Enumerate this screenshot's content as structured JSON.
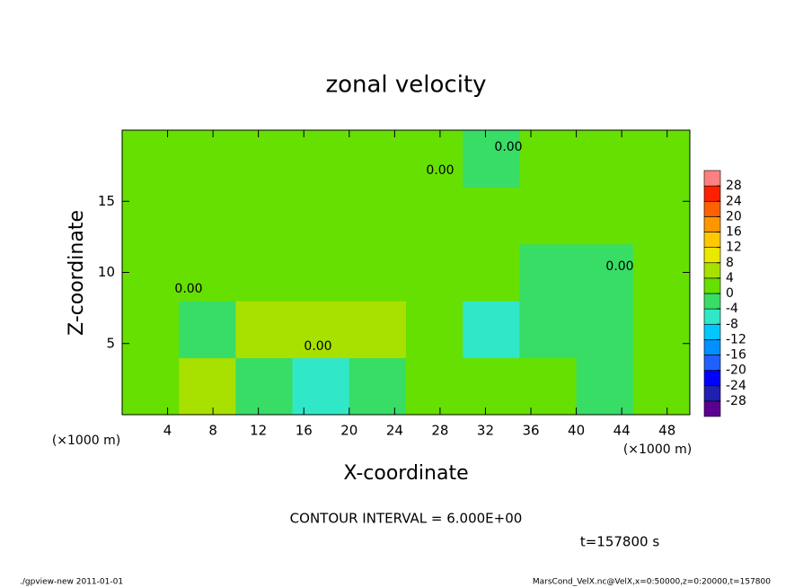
{
  "chart_data": {
    "type": "contour",
    "title": "zonal velocity",
    "x_label": "X-coordinate",
    "y_label": "Z-coordinate",
    "x_units": "(×1000 m)",
    "y_units": "(×1000 m)",
    "xlim": [
      0,
      50
    ],
    "ylim": [
      0,
      20
    ],
    "xticks": [
      4,
      8,
      12,
      16,
      20,
      24,
      28,
      32,
      36,
      40,
      44,
      48
    ],
    "yticks": [
      5,
      10,
      15
    ],
    "x_bins": [
      0,
      5,
      10,
      15,
      20,
      25,
      30,
      35,
      40,
      45,
      50
    ],
    "z_bins": [
      0,
      4,
      8,
      12,
      16,
      20
    ],
    "z": [
      [
        2,
        6,
        -4,
        -5,
        -2,
        2,
        1,
        2,
        -3,
        2
      ],
      [
        2,
        -1,
        4,
        7,
        5,
        2,
        -5,
        -2,
        -4,
        1
      ],
      [
        1,
        2,
        2,
        2,
        1,
        2,
        0,
        -1,
        -2,
        2
      ],
      [
        2,
        2,
        2,
        2,
        1,
        1,
        1,
        2,
        1,
        2
      ],
      [
        0,
        1,
        1,
        0,
        1,
        0,
        -1,
        1,
        1,
        0
      ]
    ],
    "levels": [
      -32,
      -28,
      -24,
      -20,
      -16,
      -12,
      -8,
      -4,
      0,
      4,
      8,
      12,
      16,
      20,
      24,
      28,
      32
    ],
    "colors": [
      "#5a0090",
      "#2020b0",
      "#0000ff",
      "#2060ff",
      "#0090ff",
      "#00c8ff",
      "#30e8c8",
      "#38dd66",
      "#66e000",
      "#a8e000",
      "#e8e800",
      "#ffc800",
      "#ff9600",
      "#ff6000",
      "#ff2000",
      "#ff8080"
    ],
    "cbar_ticks": [
      -28,
      -24,
      -20,
      -16,
      -12,
      -8,
      -4,
      0,
      4,
      8,
      12,
      16,
      20,
      24,
      28
    ],
    "contour_labels": [
      "0.00",
      "0.00",
      "0.00",
      "0.00",
      "0.00"
    ],
    "contour_interval": "CONTOUR INTERVAL = 6.000E+00",
    "time": "t=157800 s",
    "footer_left": "./gpview-new  2011-01-01",
    "footer_right": "MarsCond_VelX.nc@VelX,x=0:50000,z=0:20000,t=157800"
  }
}
